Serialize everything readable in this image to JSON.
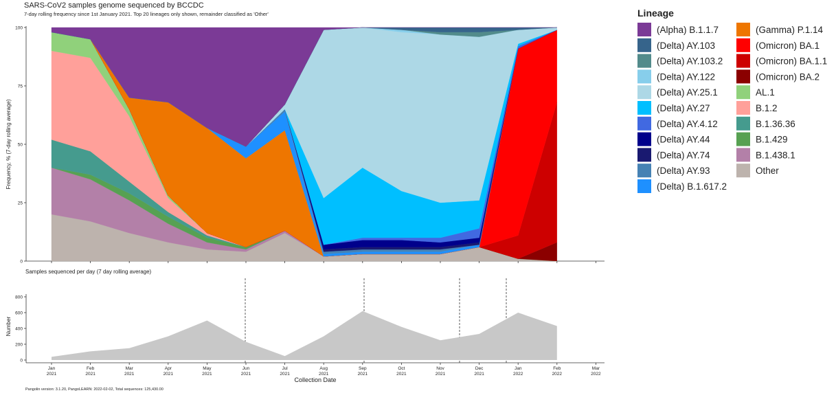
{
  "chart_data": [
    {
      "type": "area",
      "stacked": true,
      "title": "SARS-CoV2 samples genome sequenced by BCCDC",
      "subtitle": "7-day rolling frequency since 1st January 2021.  Top 20 lineages only shown, remainder classified as 'Other'",
      "ylabel": "Frequency, % (7-day rolling average)",
      "legend_title": "Lineage",
      "x": [
        "2021-01",
        "2021-02",
        "2021-03",
        "2021-04",
        "2021-05",
        "2021-06",
        "2021-07",
        "2021-08",
        "2021-09",
        "2021-10",
        "2021-11",
        "2021-12",
        "2022-01",
        "2022-02"
      ],
      "ylim": [
        0,
        100
      ],
      "yticks": [
        0,
        25,
        50,
        75,
        100
      ],
      "series": [
        {
          "name": "(Alpha) B.1.1.7",
          "color": "#7b3a96",
          "values": [
            2,
            5,
            30,
            32,
            43,
            51,
            33,
            1,
            0,
            0,
            0,
            0,
            0,
            0
          ]
        },
        {
          "name": "(Delta) AY.103",
          "color": "#36648b",
          "values": [
            0,
            0,
            0,
            0,
            0,
            0,
            0,
            0,
            0,
            1,
            2,
            2,
            1,
            0
          ]
        },
        {
          "name": "(Delta) AY.103.2",
          "color": "#528b8b",
          "values": [
            0,
            0,
            0,
            0,
            0,
            0,
            0,
            0,
            0,
            0,
            1,
            2,
            0,
            0
          ]
        },
        {
          "name": "(Delta) AY.122",
          "color": "#87ceeb",
          "values": [
            0,
            0,
            0,
            0,
            0,
            0,
            0,
            0,
            0,
            1,
            0,
            0,
            0,
            0
          ]
        },
        {
          "name": "(Delta) AY.25.1",
          "color": "#add8e6",
          "values": [
            0,
            0,
            0,
            0,
            0,
            0,
            2,
            72,
            60,
            68,
            72,
            70,
            6,
            1
          ]
        },
        {
          "name": "(Delta) AY.27",
          "color": "#00bfff",
          "values": [
            0,
            0,
            0,
            0,
            0,
            0,
            0,
            20,
            30,
            20,
            15,
            12,
            1,
            0
          ]
        },
        {
          "name": "(Delta) AY.4.12",
          "color": "#4169e1",
          "values": [
            0,
            0,
            0,
            0,
            0,
            0,
            0,
            0,
            1,
            1,
            2,
            4,
            1,
            0
          ]
        },
        {
          "name": "(Delta) AY.44",
          "color": "#00008b",
          "values": [
            0,
            0,
            0,
            0,
            0,
            0,
            0,
            2,
            3,
            3,
            2,
            2,
            0,
            0
          ]
        },
        {
          "name": "(Delta) AY.74",
          "color": "#191970",
          "values": [
            0,
            0,
            0,
            0,
            0,
            0,
            0,
            1,
            1,
            1,
            1,
            1,
            0,
            0
          ]
        },
        {
          "name": "(Delta) AY.93",
          "color": "#4682b4",
          "values": [
            0,
            0,
            0,
            0,
            0,
            0,
            1,
            1,
            1,
            1,
            1,
            0,
            0,
            0
          ]
        },
        {
          "name": "(Delta) B.1.617.2",
          "color": "#1e90ff",
          "values": [
            0,
            0,
            0,
            0,
            0,
            5,
            8,
            1,
            1,
            1,
            1,
            1,
            0,
            0
          ]
        },
        {
          "name": "(Gamma) P.1.14",
          "color": "#ee7600",
          "values": [
            0,
            0,
            5,
            40,
            45,
            38,
            43,
            0,
            0,
            0,
            0,
            0,
            0,
            0
          ]
        },
        {
          "name": "(Omicron) BA.1",
          "color": "#ff0000",
          "values": [
            0,
            0,
            0,
            0,
            0,
            0,
            0,
            0,
            0,
            0,
            0,
            0,
            80,
            31
          ]
        },
        {
          "name": "(Omicron) BA.1.1",
          "color": "#cd0000",
          "values": [
            0,
            0,
            0,
            0,
            0,
            0,
            0,
            0,
            0,
            0,
            0,
            0,
            10,
            60
          ]
        },
        {
          "name": "(Omicron) BA.2",
          "color": "#8b0000",
          "values": [
            0,
            0,
            0,
            0,
            0,
            0,
            0,
            0,
            0,
            0,
            0,
            0,
            0,
            8
          ]
        },
        {
          "name": "AL.1",
          "color": "#90d17b",
          "values": [
            8,
            8,
            3,
            1,
            0,
            0,
            0,
            0,
            0,
            0,
            0,
            0,
            0,
            0
          ]
        },
        {
          "name": "B.1.2",
          "color": "#ffa09a",
          "values": [
            38,
            40,
            28,
            6,
            1,
            0,
            0,
            0,
            0,
            0,
            0,
            0,
            0,
            0
          ]
        },
        {
          "name": "B.1.36.36",
          "color": "#459b8e",
          "values": [
            12,
            10,
            5,
            2,
            1,
            0,
            0,
            0,
            0,
            0,
            0,
            0,
            0,
            0
          ]
        },
        {
          "name": "B.1.429",
          "color": "#57a152",
          "values": [
            0,
            2,
            3,
            3,
            2,
            1,
            0,
            0,
            0,
            0,
            0,
            0,
            0,
            0
          ]
        },
        {
          "name": "B.1.438.1",
          "color": "#b380a8",
          "values": [
            20,
            18,
            14,
            8,
            3,
            1,
            1,
            0,
            0,
            0,
            0,
            0,
            0,
            0
          ]
        },
        {
          "name": "Other",
          "color": "#bdb3ad",
          "values": [
            20,
            17,
            12,
            8,
            5,
            4,
            12,
            2,
            3,
            3,
            3,
            6,
            1,
            0
          ]
        }
      ]
    },
    {
      "type": "area",
      "title": "Samples sequenced per day (7 day rolling average)",
      "ylabel": "Number",
      "xlabel": "Collection Date",
      "caption": "Pangolin version: 3.1.20, PangoLEARN: 2022-02-02, Total sequences: 125,430.00",
      "color": "#c8c8c8",
      "x": [
        "2021-01",
        "2021-02",
        "2021-03",
        "2021-04",
        "2021-05",
        "2021-06",
        "2021-07",
        "2021-08",
        "2021-09",
        "2021-10",
        "2021-11",
        "2021-12",
        "2022-01",
        "2022-02"
      ],
      "values": [
        40,
        110,
        150,
        300,
        500,
        230,
        50,
        300,
        620,
        420,
        250,
        330,
        600,
        430
      ],
      "ylim": [
        0,
        800
      ],
      "yticks": [
        0,
        200,
        400,
        600,
        800
      ],
      "xticks": [
        {
          "value": "2021-01",
          "label": "Jan 2021"
        },
        {
          "value": "2021-02",
          "label": "Feb 2021"
        },
        {
          "value": "2021-03",
          "label": "Mar 2021"
        },
        {
          "value": "2021-04",
          "label": "Apr 2021"
        },
        {
          "value": "2021-05",
          "label": "May 2021"
        },
        {
          "value": "2021-06",
          "label": "Jun 2021"
        },
        {
          "value": "2021-07",
          "label": "Jul 2021"
        },
        {
          "value": "2021-08",
          "label": "Aug 2021"
        },
        {
          "value": "2021-09",
          "label": "Sep 2021"
        },
        {
          "value": "2021-10",
          "label": "Oct 2021"
        },
        {
          "value": "2021-11",
          "label": "Nov 2021"
        },
        {
          "value": "2021-12",
          "label": "Dec 2021"
        },
        {
          "value": "2022-01",
          "label": "Jan 2022"
        },
        {
          "value": "2022-02",
          "label": "Feb 2022"
        },
        {
          "value": "2022-03",
          "label": "Mar 2022"
        }
      ]
    }
  ]
}
